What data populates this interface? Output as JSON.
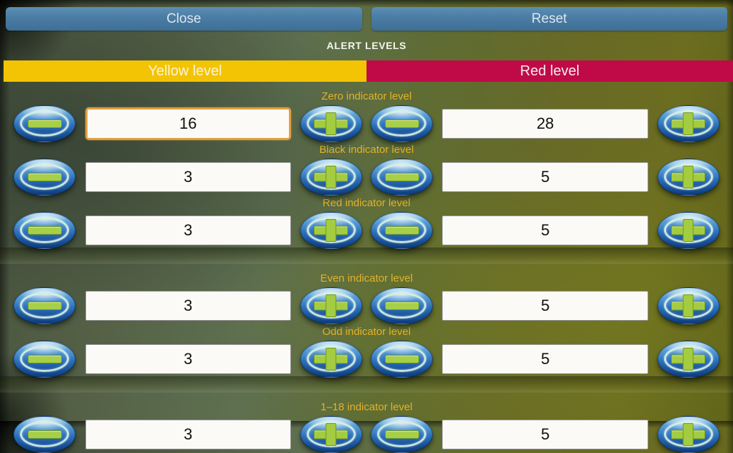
{
  "topbar": {
    "close_label": "Close",
    "reset_label": "Reset"
  },
  "title": "ALERT LEVELS",
  "columns": {
    "yellow_label": "Yellow level",
    "red_label": "Red level"
  },
  "rows": [
    {
      "label": "Zero indicator level",
      "yellow_value": "16",
      "red_value": "28"
    },
    {
      "label": "Black indicator level",
      "yellow_value": "3",
      "red_value": "5"
    },
    {
      "label": "Red indicator level",
      "yellow_value": "3",
      "red_value": "5"
    },
    {
      "label": "Even indicator level",
      "yellow_value": "3",
      "red_value": "5"
    },
    {
      "label": "Odd indicator level",
      "yellow_value": "3",
      "red_value": "5"
    },
    {
      "label": "1–18 indicator level",
      "yellow_value": "3",
      "red_value": "5"
    }
  ],
  "focused_field": "Zero indicator level yellow value",
  "colors": {
    "yellow_header_bg": "#f3c404",
    "red_header_bg": "#c00a47",
    "label_text": "#e2b22b",
    "topbar_button_bg": "#4a7ca4",
    "focused_input_border": "#e0a040",
    "stepper_button_blue": "#2c6fba",
    "stepper_symbol_green": "#a4cc40"
  },
  "icons": {
    "decrement": "minus-icon",
    "increment": "plus-icon"
  }
}
